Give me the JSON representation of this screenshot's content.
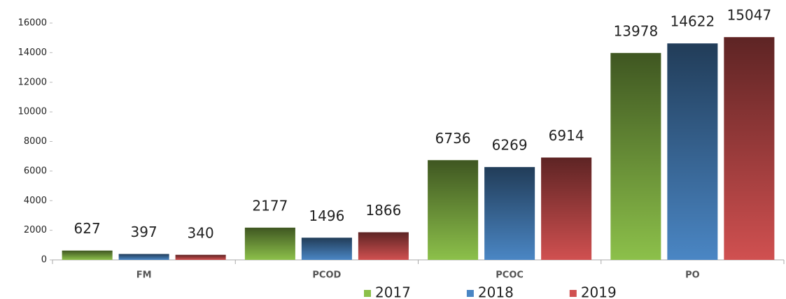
{
  "chart_data": {
    "type": "bar",
    "categories": [
      "FM",
      "PCOD",
      "PCOC",
      "PO"
    ],
    "series": [
      {
        "name": "2017",
        "color": "#8cc04a",
        "values": [
          627,
          2177,
          6736,
          13978
        ]
      },
      {
        "name": "2018",
        "color": "#4a86c4",
        "values": [
          397,
          1496,
          6269,
          14622
        ]
      },
      {
        "name": "2019",
        "color": "#d05050",
        "values": [
          340,
          1866,
          6914,
          15047
        ]
      }
    ],
    "ylim": [
      0,
      16000
    ],
    "yticks": [
      0,
      2000,
      4000,
      6000,
      8000,
      10000,
      12000,
      14000,
      16000
    ],
    "grid": false,
    "legend": "bottom"
  }
}
